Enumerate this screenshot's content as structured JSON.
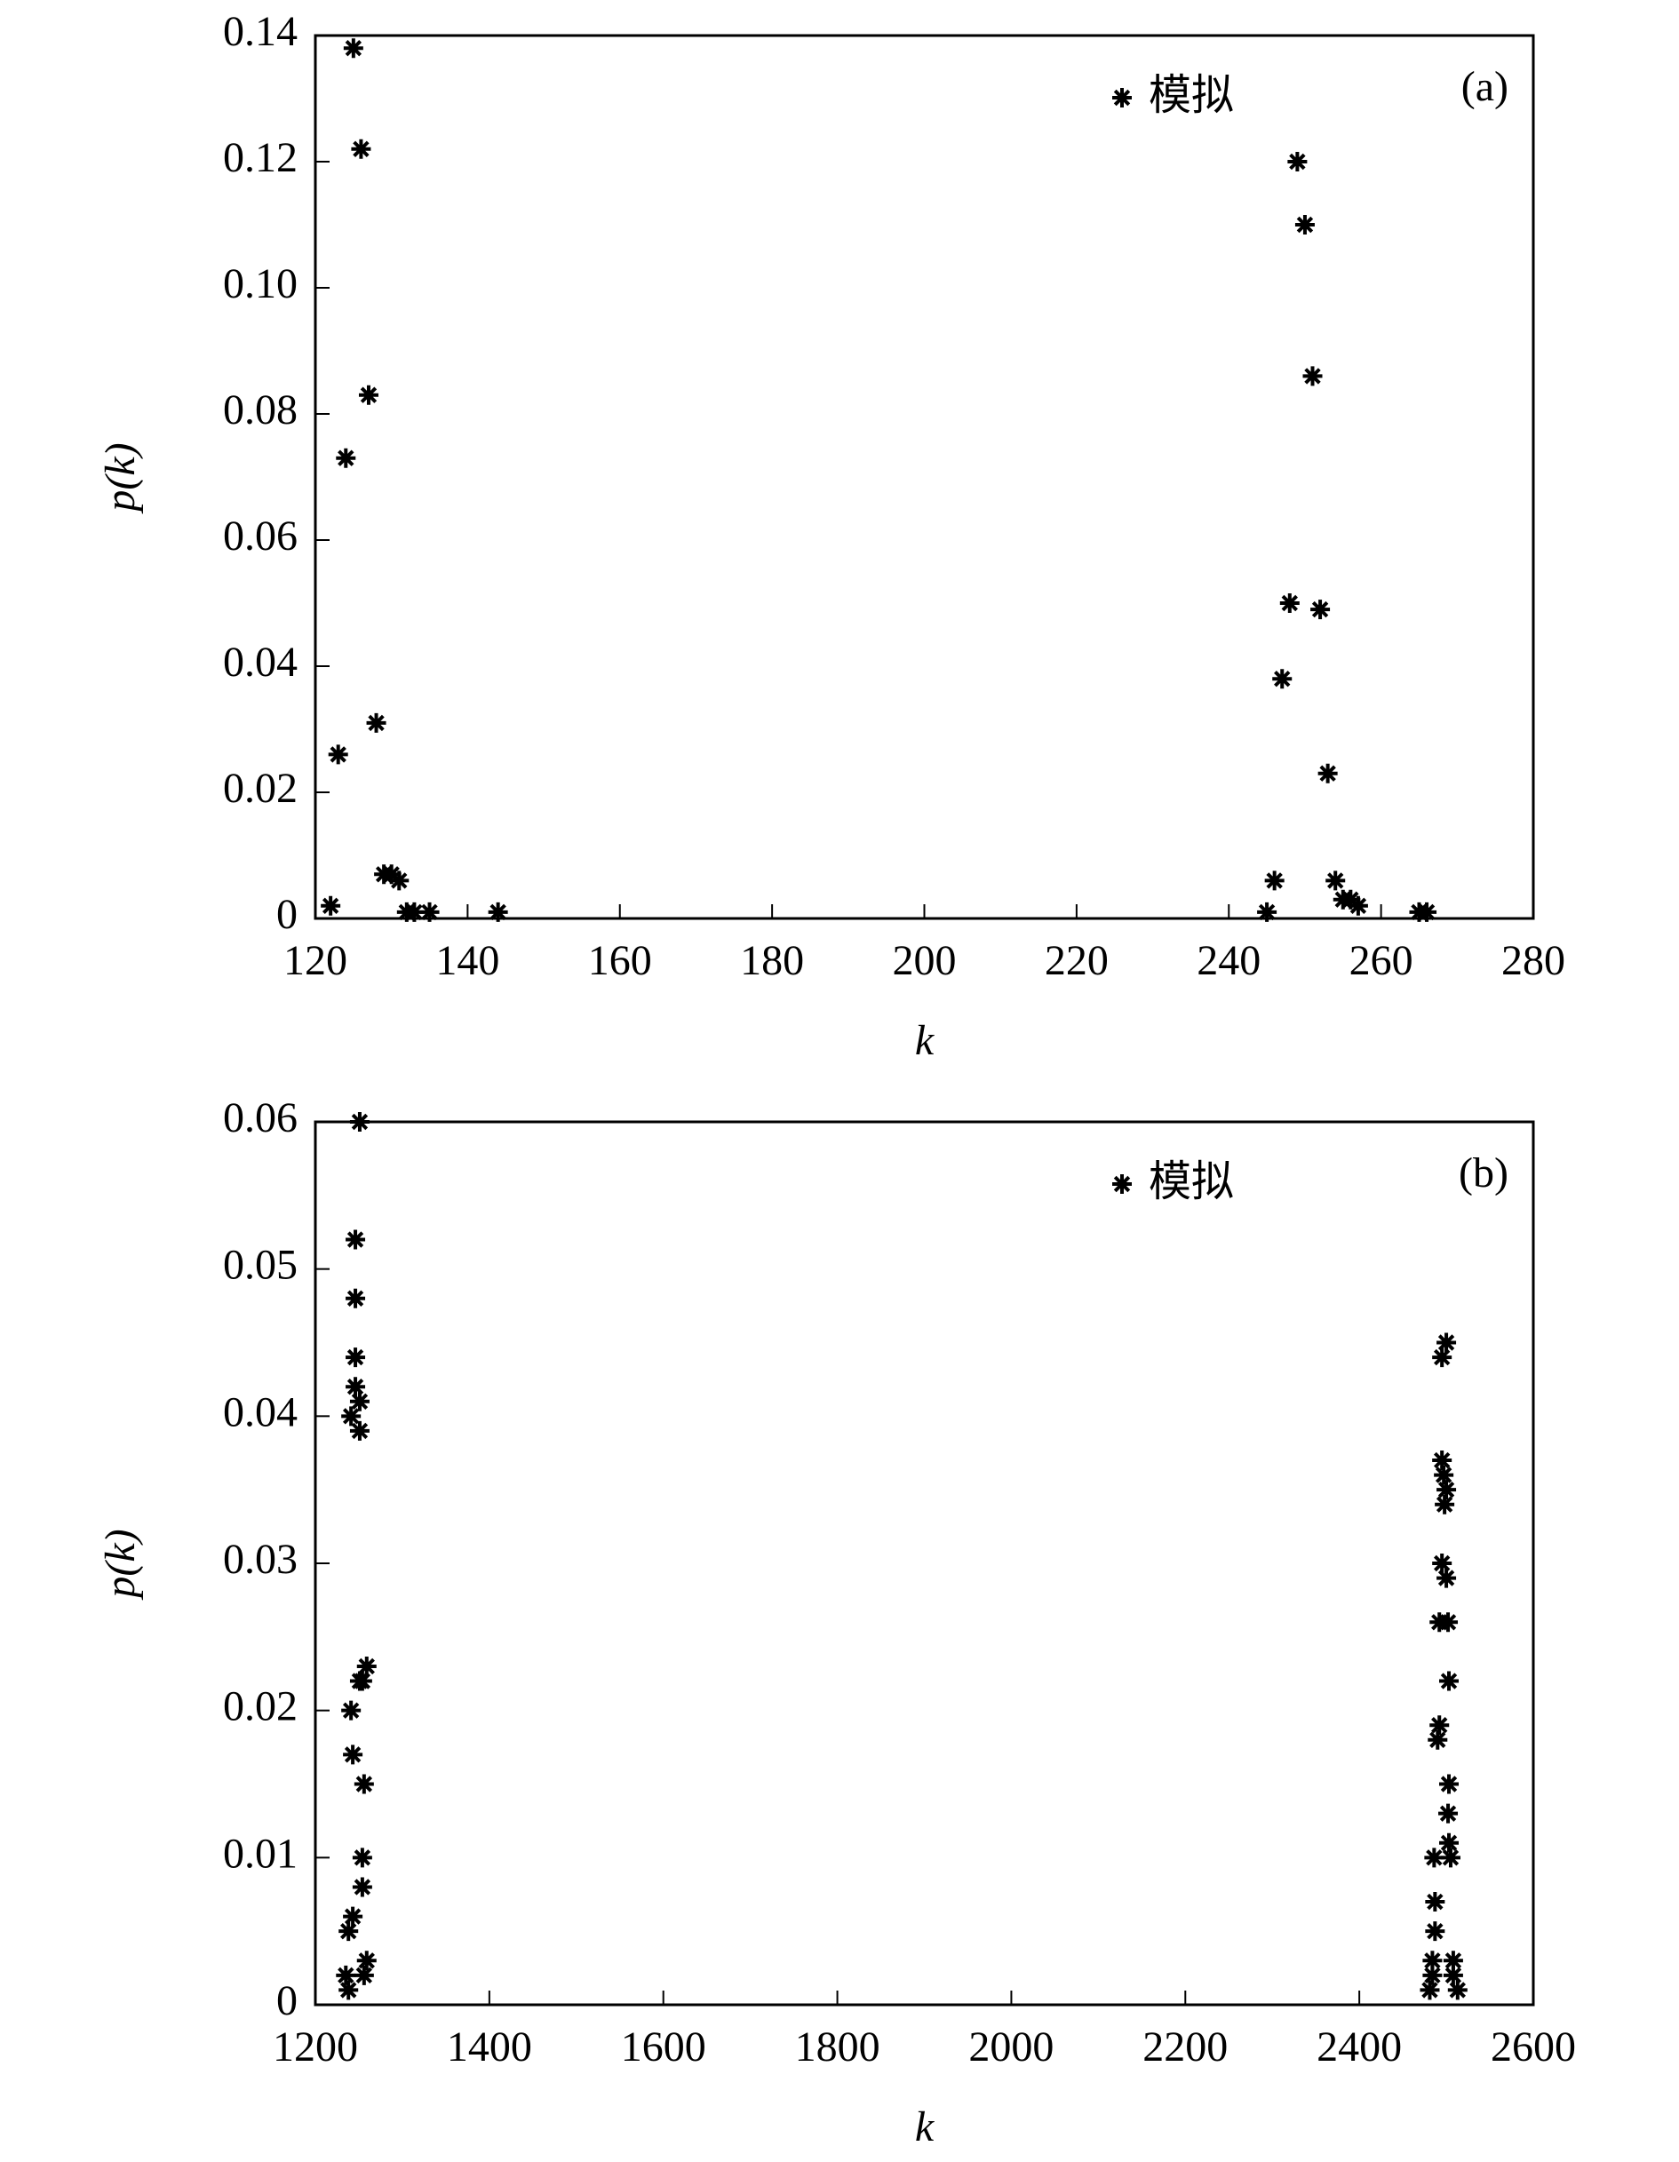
{
  "chart_data": [
    {
      "type": "scatter",
      "annotation": "(a)",
      "xlabel": "k",
      "ylabel": "p(k)",
      "xlim": [
        120,
        280
      ],
      "xticks": [
        120,
        140,
        160,
        180,
        200,
        220,
        240,
        260,
        280
      ],
      "ylim": [
        0,
        0.14
      ],
      "yticks": [
        0,
        0.02,
        0.04,
        0.06,
        0.08,
        {
          "value": 0.1,
          "label": "0.10"
        },
        0.12,
        0.14
      ],
      "legend": "upper right",
      "series": [
        {
          "name": "模拟",
          "color": "#000000",
          "x": [
            122,
            123,
            124,
            125,
            126,
            127,
            128,
            129,
            130,
            131,
            132,
            133,
            135,
            144,
            245,
            246,
            247,
            248,
            249,
            250,
            251,
            252,
            253,
            254,
            255,
            256,
            257,
            265,
            266
          ],
          "values": [
            0.002,
            0.026,
            0.073,
            0.138,
            0.122,
            0.083,
            0.031,
            0.007,
            0.007,
            0.006,
            0.001,
            0.001,
            0.001,
            0.001,
            0.001,
            0.006,
            0.038,
            0.05,
            0.12,
            0.11,
            0.086,
            0.049,
            0.023,
            0.006,
            0.003,
            0.003,
            0.002,
            0.001,
            0.001
          ]
        }
      ]
    },
    {
      "type": "scatter",
      "annotation": "(b)",
      "xlabel": "k",
      "ylabel": "p(k)",
      "xlim": [
        1200,
        2600
      ],
      "xticks": [
        1200,
        1400,
        1600,
        1800,
        2000,
        2200,
        2400,
        2600
      ],
      "ylim": [
        0,
        0.06
      ],
      "yticks": [
        0,
        0.01,
        0.02,
        0.03,
        0.04,
        0.05,
        0.06
      ],
      "legend": "upper right",
      "series": [
        {
          "name": "模拟",
          "color": "#000000",
          "x": [
            1251,
            1246,
            1246,
            1246,
            1246,
            1251,
            1241,
            1251,
            1259,
            1254,
            1251,
            1241,
            1243,
            1256,
            1254,
            1254,
            1243,
            1238,
            1259,
            1256,
            1235,
            1238,
            2500,
            2495,
            2495,
            2497,
            2500,
            2498,
            2495,
            2500,
            2492,
            2502,
            2503,
            2492,
            2490,
            2503,
            2502,
            2503,
            2505,
            2486,
            2487,
            2487,
            2484,
            2508,
            2484,
            2508,
            2481,
            2513
          ],
          "values": [
            0.06,
            0.052,
            0.048,
            0.044,
            0.042,
            0.041,
            0.04,
            0.039,
            0.023,
            0.022,
            0.022,
            0.02,
            0.017,
            0.015,
            0.01,
            0.008,
            0.006,
            0.005,
            0.003,
            0.002,
            0.002,
            0.001,
            0.045,
            0.044,
            0.037,
            0.036,
            0.035,
            0.034,
            0.03,
            0.029,
            0.026,
            0.026,
            0.022,
            0.019,
            0.018,
            0.015,
            0.013,
            0.011,
            0.01,
            0.01,
            0.007,
            0.005,
            0.003,
            0.003,
            0.002,
            0.002,
            0.001,
            0.001
          ]
        }
      ]
    }
  ]
}
